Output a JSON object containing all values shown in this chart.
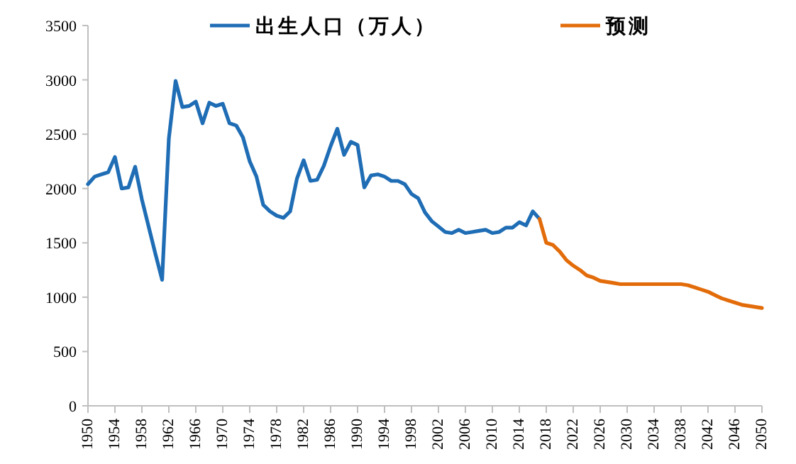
{
  "chart_data": {
    "type": "line",
    "legend": "top",
    "line_style": "solid",
    "marker": "none",
    "grid": false,
    "xlim": [
      1950,
      2050
    ],
    "xticks": [
      1950,
      1954,
      1958,
      1962,
      1966,
      1970,
      1974,
      1978,
      1982,
      1986,
      1990,
      1994,
      1998,
      2002,
      2006,
      2010,
      2014,
      2018,
      2022,
      2026,
      2030,
      2034,
      2038,
      2042,
      2046,
      2050
    ],
    "ylim": [
      0,
      3500
    ],
    "yticks": [
      0,
      500,
      1000,
      1500,
      2000,
      2500,
      3000,
      3500
    ],
    "series": [
      {
        "name": "出生人口（万人）",
        "color": "#1f6db5",
        "x": [
          1950,
          1951,
          1952,
          1953,
          1954,
          1955,
          1956,
          1957,
          1958,
          1959,
          1960,
          1961,
          1962,
          1963,
          1964,
          1965,
          1966,
          1967,
          1968,
          1969,
          1970,
          1971,
          1972,
          1973,
          1974,
          1975,
          1976,
          1977,
          1978,
          1979,
          1980,
          1981,
          1982,
          1983,
          1984,
          1985,
          1986,
          1987,
          1988,
          1989,
          1990,
          1991,
          1992,
          1993,
          1994,
          1995,
          1996,
          1997,
          1998,
          1999,
          2000,
          2001,
          2002,
          2003,
          2004,
          2005,
          2006,
          2007,
          2008,
          2009,
          2010,
          2011,
          2012,
          2013,
          2014,
          2015,
          2016,
          2017
        ],
        "values": [
          2040,
          2110,
          2130,
          2150,
          2290,
          2000,
          2010,
          2200,
          1900,
          1650,
          1400,
          1160,
          2460,
          2990,
          2750,
          2760,
          2800,
          2600,
          2790,
          2760,
          2780,
          2600,
          2580,
          2470,
          2250,
          2110,
          1850,
          1790,
          1750,
          1730,
          1790,
          2090,
          2260,
          2070,
          2080,
          2210,
          2390,
          2550,
          2310,
          2430,
          2400,
          2010,
          2120,
          2130,
          2110,
          2070,
          2070,
          2040,
          1950,
          1910,
          1780,
          1700,
          1650,
          1600,
          1590,
          1620,
          1590,
          1600,
          1610,
          1620,
          1590,
          1600,
          1640,
          1640,
          1690,
          1660,
          1790,
          1720
        ]
      },
      {
        "name": "预测",
        "color": "#e36c0a",
        "x": [
          2017,
          2018,
          2019,
          2020,
          2021,
          2022,
          2023,
          2024,
          2025,
          2026,
          2027,
          2028,
          2029,
          2038,
          2039,
          2040,
          2041,
          2042,
          2043,
          2044,
          2045,
          2046,
          2047,
          2048,
          2049,
          2050
        ],
        "values": [
          1720,
          1500,
          1480,
          1420,
          1340,
          1290,
          1250,
          1200,
          1180,
          1150,
          1140,
          1130,
          1120,
          1120,
          1110,
          1090,
          1070,
          1050,
          1020,
          990,
          970,
          950,
          930,
          920,
          910,
          900
        ]
      }
    ]
  }
}
